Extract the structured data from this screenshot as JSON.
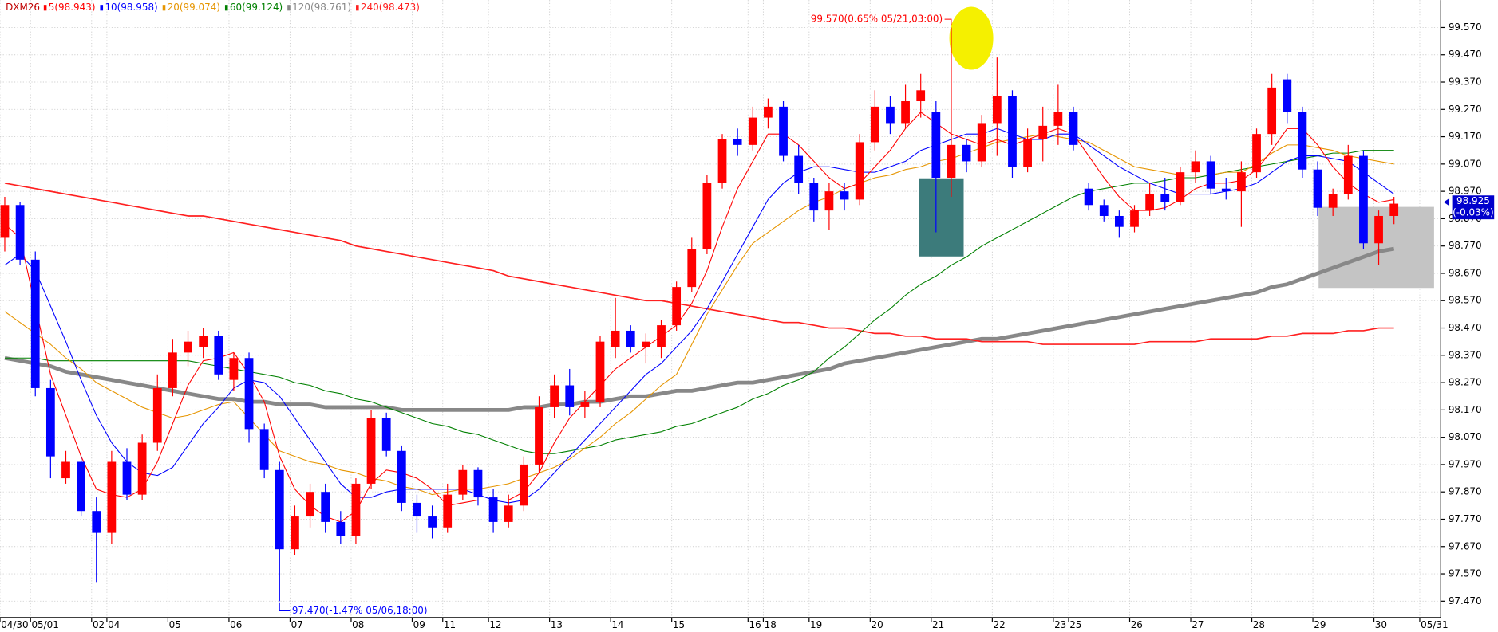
{
  "chart_data": {
    "type": "candlestick",
    "symbol": "DXM26",
    "categories": [
      "04/30",
      null,
      "05/01",
      null,
      null,
      null,
      "02",
      "04",
      null,
      null,
      null,
      "05",
      null,
      null,
      null,
      "06",
      null,
      null,
      null,
      "07",
      null,
      null,
      null,
      "08",
      null,
      null,
      null,
      "09",
      null,
      "11",
      null,
      null,
      "12",
      null,
      null,
      null,
      "13",
      null,
      null,
      null,
      "14",
      null,
      null,
      null,
      "15",
      null,
      null,
      null,
      null,
      "16",
      "18",
      null,
      null,
      "19",
      null,
      null,
      null,
      "20",
      null,
      null,
      null,
      "21",
      null,
      null,
      null,
      "22",
      null,
      null,
      null,
      "23",
      "25",
      null,
      null,
      null,
      "26",
      null,
      null,
      null,
      "27",
      null,
      null,
      null,
      "28",
      null,
      null,
      null,
      "29",
      null,
      null,
      null,
      "30",
      null,
      null,
      "05/31"
    ],
    "open": [
      98.8,
      98.92,
      98.72,
      98.25,
      97.92,
      97.98,
      97.8,
      97.72,
      97.98,
      97.86,
      98.05,
      98.25,
      98.38,
      98.4,
      98.44,
      98.28,
      98.36,
      98.1,
      97.95,
      97.66,
      97.78,
      97.87,
      97.76,
      97.71,
      97.9,
      98.14,
      98.02,
      97.83,
      97.78,
      97.74,
      97.86,
      97.95,
      97.85,
      97.76,
      97.82,
      97.97,
      98.18,
      98.26,
      98.18,
      98.2,
      98.4,
      98.46,
      98.4,
      98.4,
      98.48,
      98.62,
      98.76,
      99.0,
      99.16,
      99.14,
      99.24,
      99.28,
      99.1,
      99.0,
      98.9,
      98.97,
      98.94,
      99.15,
      99.28,
      99.22,
      99.3,
      99.26,
      99.02,
      99.14,
      99.08,
      99.22,
      99.32,
      99.06,
      99.16,
      99.21,
      99.26,
      98.98,
      98.92,
      98.88,
      98.84,
      98.9,
      98.96,
      98.93,
      99.04,
      99.08,
      98.98,
      98.97,
      99.04,
      99.18,
      99.38,
      99.26,
      99.05,
      98.91,
      98.96,
      99.1,
      98.78,
      98.88,
      null,
      null
    ],
    "high": [
      98.95,
      98.93,
      98.75,
      98.28,
      98.02,
      98.0,
      97.85,
      98.02,
      98.03,
      98.08,
      98.3,
      98.43,
      98.46,
      98.47,
      98.46,
      98.38,
      98.38,
      98.12,
      97.98,
      97.82,
      97.9,
      97.9,
      97.8,
      97.92,
      98.17,
      98.16,
      98.04,
      97.86,
      97.82,
      97.9,
      97.97,
      97.96,
      97.88,
      97.86,
      98.0,
      98.22,
      98.3,
      98.32,
      98.24,
      98.44,
      98.58,
      98.48,
      98.45,
      98.5,
      98.64,
      98.8,
      99.03,
      99.18,
      99.2,
      99.28,
      99.31,
      99.3,
      99.14,
      99.02,
      99.0,
      99.0,
      99.18,
      99.34,
      99.32,
      99.36,
      99.4,
      99.3,
      99.57,
      99.16,
      99.25,
      99.46,
      99.34,
      99.2,
      99.28,
      99.36,
      99.28,
      99.0,
      98.94,
      98.9,
      98.92,
      99.0,
      99.02,
      99.06,
      99.12,
      99.1,
      99.02,
      99.08,
      99.2,
      99.4,
      99.4,
      99.28,
      99.08,
      98.98,
      99.14,
      99.12,
      98.9,
      98.95,
      null,
      null
    ],
    "low": [
      98.75,
      98.7,
      98.22,
      97.92,
      97.9,
      97.78,
      97.54,
      97.68,
      97.84,
      97.84,
      98.02,
      98.22,
      98.33,
      98.36,
      98.28,
      98.24,
      98.05,
      97.92,
      97.47,
      97.64,
      97.74,
      97.72,
      97.68,
      97.68,
      97.88,
      98.0,
      97.8,
      97.72,
      97.7,
      97.72,
      97.84,
      97.82,
      97.72,
      97.74,
      97.8,
      97.94,
      98.14,
      98.15,
      98.14,
      98.18,
      98.36,
      98.38,
      98.34,
      98.36,
      98.46,
      98.6,
      98.74,
      98.98,
      99.1,
      99.12,
      99.2,
      99.08,
      98.96,
      98.86,
      98.83,
      98.9,
      98.92,
      99.12,
      99.18,
      99.2,
      99.24,
      98.82,
      98.95,
      99.04,
      99.06,
      99.1,
      99.02,
      99.04,
      99.08,
      99.14,
      99.12,
      98.9,
      98.86,
      98.8,
      98.82,
      98.88,
      98.9,
      98.92,
      99.0,
      98.96,
      98.94,
      98.84,
      99.02,
      99.14,
      99.22,
      99.02,
      98.88,
      98.88,
      98.94,
      98.76,
      98.7,
      98.85,
      null,
      null
    ],
    "close": [
      98.92,
      98.72,
      98.25,
      98.0,
      97.98,
      97.8,
      97.72,
      97.98,
      97.86,
      98.05,
      98.25,
      98.38,
      98.42,
      98.44,
      98.3,
      98.36,
      98.1,
      97.95,
      97.66,
      97.78,
      97.87,
      97.76,
      97.71,
      97.9,
      98.14,
      98.02,
      97.83,
      97.78,
      97.74,
      97.86,
      97.95,
      97.85,
      97.76,
      97.82,
      97.97,
      98.18,
      98.26,
      98.18,
      98.2,
      98.42,
      98.46,
      98.4,
      98.42,
      98.48,
      98.62,
      98.76,
      99.0,
      99.16,
      99.14,
      99.24,
      99.28,
      99.1,
      99.0,
      98.9,
      98.97,
      98.94,
      99.15,
      99.28,
      99.22,
      99.3,
      99.34,
      99.02,
      99.14,
      99.08,
      99.22,
      99.32,
      99.06,
      99.16,
      99.21,
      99.26,
      99.14,
      98.92,
      98.88,
      98.84,
      98.9,
      98.96,
      98.93,
      99.04,
      99.08,
      98.98,
      98.97,
      99.04,
      99.18,
      99.35,
      99.26,
      99.05,
      98.91,
      98.96,
      99.1,
      98.78,
      98.88,
      98.925,
      null,
      null
    ],
    "up_color": "#ff0000",
    "down_color": "#0000ff",
    "series": [
      {
        "name": "5(98.943)",
        "color": "#ff0000",
        "values": [
          98.85,
          98.8,
          98.55,
          98.3,
          98.15,
          98.0,
          97.88,
          97.86,
          97.85,
          97.88,
          97.98,
          98.12,
          98.26,
          98.35,
          98.36,
          98.38,
          98.3,
          98.2,
          98.0,
          97.88,
          97.82,
          97.78,
          97.76,
          97.8,
          97.9,
          97.95,
          97.94,
          97.92,
          97.88,
          97.82,
          97.83,
          97.84,
          97.84,
          97.84,
          97.87,
          97.94,
          98.05,
          98.14,
          98.2,
          98.26,
          98.32,
          98.36,
          98.4,
          98.44,
          98.48,
          98.56,
          98.68,
          98.84,
          98.98,
          99.08,
          99.18,
          99.18,
          99.14,
          99.08,
          99.02,
          98.98,
          99.0,
          99.06,
          99.12,
          99.2,
          99.26,
          99.22,
          99.18,
          99.16,
          99.14,
          99.16,
          99.14,
          99.16,
          99.18,
          99.2,
          99.18,
          99.1,
          99.02,
          98.95,
          98.9,
          98.9,
          98.91,
          98.94,
          98.98,
          99.0,
          99.0,
          99.01,
          99.05,
          99.12,
          99.2,
          99.2,
          99.14,
          99.06,
          99.0,
          98.96,
          98.93,
          98.94,
          null,
          null
        ]
      },
      {
        "name": "10(98.958)",
        "color": "#0000ff",
        "values": [
          98.7,
          98.74,
          98.68,
          98.55,
          98.42,
          98.28,
          98.15,
          98.05,
          97.98,
          97.94,
          97.93,
          97.96,
          98.04,
          98.12,
          98.18,
          98.25,
          98.28,
          98.27,
          98.22,
          98.14,
          98.06,
          97.98,
          97.9,
          97.85,
          97.85,
          97.87,
          97.88,
          97.88,
          97.88,
          97.88,
          97.88,
          97.86,
          97.84,
          97.83,
          97.84,
          97.88,
          97.94,
          98.0,
          98.06,
          98.12,
          98.18,
          98.24,
          98.3,
          98.34,
          98.4,
          98.46,
          98.54,
          98.64,
          98.74,
          98.84,
          98.94,
          99.0,
          99.04,
          99.06,
          99.06,
          99.05,
          99.04,
          99.04,
          99.06,
          99.08,
          99.12,
          99.14,
          99.16,
          99.18,
          99.18,
          99.2,
          99.18,
          99.16,
          99.16,
          99.18,
          99.18,
          99.14,
          99.1,
          99.06,
          99.03,
          99.0,
          98.98,
          98.96,
          98.96,
          98.96,
          98.97,
          98.98,
          99.0,
          99.04,
          99.08,
          99.1,
          99.1,
          99.09,
          99.08,
          99.04,
          99.0,
          98.96,
          null,
          null
        ]
      },
      {
        "name": "20(99.074)",
        "color": "#e69500",
        "values": [
          98.53,
          98.49,
          98.45,
          98.41,
          98.36,
          98.32,
          98.27,
          98.24,
          98.21,
          98.18,
          98.16,
          98.14,
          98.15,
          98.17,
          98.19,
          98.2,
          98.14,
          98.08,
          98.02,
          98.0,
          97.98,
          97.97,
          97.95,
          97.94,
          97.92,
          97.91,
          97.89,
          97.88,
          97.86,
          97.87,
          97.88,
          97.88,
          97.89,
          97.9,
          97.92,
          97.94,
          97.96,
          97.99,
          98.03,
          98.07,
          98.12,
          98.16,
          98.21,
          98.26,
          98.3,
          98.41,
          98.52,
          98.61,
          98.7,
          98.78,
          98.82,
          98.86,
          98.9,
          98.93,
          98.95,
          98.98,
          99.0,
          99.02,
          99.03,
          99.05,
          99.06,
          99.08,
          99.09,
          99.11,
          99.13,
          99.15,
          99.16,
          99.17,
          99.18,
          99.17,
          99.16,
          99.15,
          99.12,
          99.09,
          99.06,
          99.05,
          99.04,
          99.03,
          99.03,
          99.03,
          99.04,
          99.04,
          99.07,
          99.11,
          99.14,
          99.14,
          99.13,
          99.12,
          99.1,
          99.09,
          99.08,
          99.07,
          null,
          null
        ]
      },
      {
        "name": "60(99.124)",
        "color": "#008000",
        "values": [
          98.36,
          98.36,
          98.36,
          98.35,
          98.35,
          98.35,
          98.35,
          98.35,
          98.35,
          98.35,
          98.35,
          98.35,
          98.35,
          98.34,
          98.33,
          98.32,
          98.31,
          98.3,
          98.29,
          98.27,
          98.26,
          98.24,
          98.23,
          98.21,
          98.2,
          98.18,
          98.16,
          98.14,
          98.12,
          98.11,
          98.09,
          98.08,
          98.06,
          98.04,
          98.02,
          98.01,
          98.01,
          98.02,
          98.03,
          98.04,
          98.06,
          98.07,
          98.08,
          98.09,
          98.11,
          98.12,
          98.14,
          98.16,
          98.18,
          98.21,
          98.23,
          98.26,
          98.28,
          98.31,
          98.36,
          98.4,
          98.45,
          98.5,
          98.54,
          98.59,
          98.63,
          98.66,
          98.7,
          98.73,
          98.77,
          98.8,
          98.83,
          98.86,
          98.89,
          98.92,
          98.95,
          98.97,
          98.98,
          98.99,
          99.0,
          99.0,
          99.01,
          99.02,
          99.02,
          99.03,
          99.04,
          99.05,
          99.06,
          99.07,
          99.08,
          99.09,
          99.1,
          99.11,
          99.11,
          99.12,
          99.12,
          99.12,
          null,
          null
        ]
      },
      {
        "name": "120(98.761)",
        "color": "#888888",
        "values": [
          98.36,
          98.35,
          98.34,
          98.33,
          98.31,
          98.3,
          98.29,
          98.28,
          98.27,
          98.26,
          98.25,
          98.24,
          98.23,
          98.22,
          98.21,
          98.21,
          98.2,
          98.2,
          98.19,
          98.19,
          98.19,
          98.18,
          98.18,
          98.18,
          98.18,
          98.18,
          98.17,
          98.17,
          98.17,
          98.17,
          98.17,
          98.17,
          98.17,
          98.17,
          98.18,
          98.18,
          98.19,
          98.19,
          98.2,
          98.2,
          98.21,
          98.22,
          98.22,
          98.23,
          98.24,
          98.24,
          98.25,
          98.26,
          98.27,
          98.27,
          98.28,
          98.29,
          98.3,
          98.31,
          98.32,
          98.34,
          98.35,
          98.36,
          98.37,
          98.38,
          98.39,
          98.4,
          98.41,
          98.42,
          98.43,
          98.43,
          98.44,
          98.45,
          98.46,
          98.47,
          98.48,
          98.49,
          98.5,
          98.51,
          98.52,
          98.53,
          98.54,
          98.55,
          98.56,
          98.57,
          98.58,
          98.59,
          98.6,
          98.62,
          98.63,
          98.65,
          98.67,
          98.69,
          98.71,
          98.73,
          98.75,
          98.76,
          null,
          null
        ]
      },
      {
        "name": "240(98.473)",
        "color": "#ff2020",
        "values": [
          99.0,
          98.99,
          98.98,
          98.97,
          98.96,
          98.95,
          98.94,
          98.93,
          98.92,
          98.91,
          98.9,
          98.89,
          98.88,
          98.88,
          98.87,
          98.86,
          98.85,
          98.84,
          98.83,
          98.82,
          98.81,
          98.8,
          98.79,
          98.77,
          98.76,
          98.75,
          98.74,
          98.73,
          98.72,
          98.71,
          98.7,
          98.69,
          98.68,
          98.66,
          98.65,
          98.64,
          98.63,
          98.62,
          98.61,
          98.6,
          98.59,
          98.58,
          98.57,
          98.57,
          98.56,
          98.55,
          98.54,
          98.53,
          98.52,
          98.51,
          98.5,
          98.49,
          98.49,
          98.48,
          98.47,
          98.47,
          98.46,
          98.45,
          98.45,
          98.44,
          98.44,
          98.43,
          98.43,
          98.43,
          98.42,
          98.42,
          98.42,
          98.42,
          98.41,
          98.41,
          98.41,
          98.41,
          98.41,
          98.41,
          98.41,
          98.42,
          98.42,
          98.42,
          98.42,
          98.43,
          98.43,
          98.43,
          98.43,
          98.44,
          98.44,
          98.45,
          98.45,
          98.45,
          98.46,
          98.46,
          98.47,
          98.47,
          null,
          null
        ]
      }
    ],
    "ylim": [
      97.41,
      99.67
    ],
    "yticks": [
      {
        "value": 97.47,
        "label": "97.470"
      },
      {
        "value": 97.57,
        "label": "97.570"
      },
      {
        "value": 97.67,
        "label": "97.670"
      },
      {
        "value": 97.77,
        "label": "97.770"
      },
      {
        "value": 97.87,
        "label": "97.870"
      },
      {
        "value": 97.97,
        "label": "97.970"
      },
      {
        "value": 98.07,
        "label": "98.070"
      },
      {
        "value": 98.17,
        "label": "98.170"
      },
      {
        "value": 98.27,
        "label": "98.270"
      },
      {
        "value": 98.37,
        "label": "98.370"
      },
      {
        "value": 98.47,
        "label": "98.470"
      },
      {
        "value": 98.57,
        "label": "98.570"
      },
      {
        "value": 98.67,
        "label": "98.670"
      },
      {
        "value": 98.77,
        "label": "98.770"
      },
      {
        "value": 98.87,
        "label": "98.870"
      },
      {
        "value": 98.97,
        "label": "98.970"
      },
      {
        "value": 99.07,
        "label": "99.070"
      },
      {
        "value": 99.17,
        "label": "99.170"
      },
      {
        "value": 99.27,
        "label": "99.270"
      },
      {
        "value": 99.37,
        "label": "99.370"
      },
      {
        "value": 99.47,
        "label": "99.470"
      },
      {
        "value": 99.57,
        "label": "99.570"
      }
    ],
    "grid": true,
    "annotations": [
      "99.570(0.65% 05/21,03:00)",
      "97.470(-1.47% 05/06,18:00)"
    ],
    "last_price": 98.925,
    "last_change": "(-0.03%)"
  }
}
